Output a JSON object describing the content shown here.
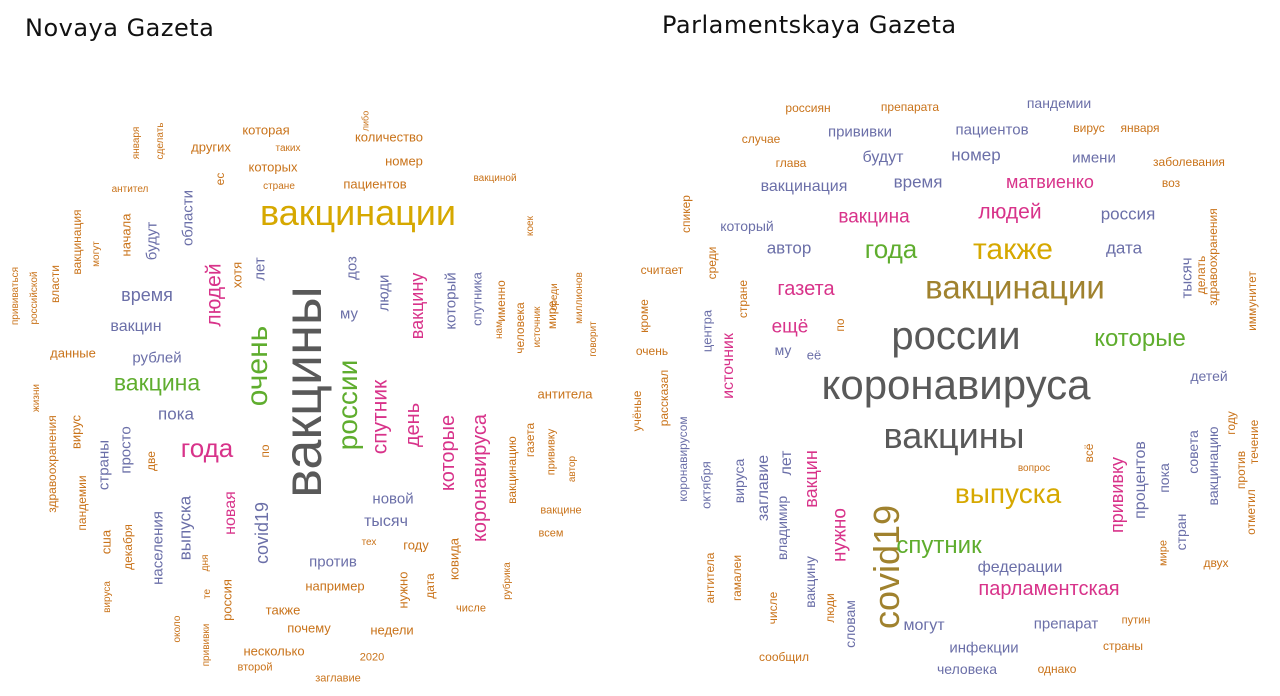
{
  "palette": {
    "gray": "#595959",
    "yellow": "#d6a800",
    "green": "#5fad2e",
    "pink": "#d8338a",
    "blue": "#6b6fa8",
    "orange": "#c9731a",
    "brown": "#a0822e"
  },
  "left": {
    "title": "Novaya Gazeta",
    "words": [
      {
        "t": "вакцины",
        "c": "gray",
        "s": 54,
        "v": 1
      },
      {
        "t": "вакцинации",
        "c": "yellow",
        "s": 36,
        "v": 0
      },
      {
        "t": "очень",
        "c": "green",
        "s": 30,
        "v": 1
      },
      {
        "t": "россии",
        "c": "green",
        "s": 28,
        "v": 1
      },
      {
        "t": "вакцина",
        "c": "green",
        "s": 23,
        "v": 0
      },
      {
        "t": "года",
        "c": "pink",
        "s": 26,
        "v": 0
      },
      {
        "t": "людей",
        "c": "pink",
        "s": 21,
        "v": 1
      },
      {
        "t": "спутник",
        "c": "pink",
        "s": 21,
        "v": 1
      },
      {
        "t": "день",
        "c": "pink",
        "s": 20,
        "v": 1
      },
      {
        "t": "которые",
        "c": "pink",
        "s": 20,
        "v": 1
      },
      {
        "t": "коронавируса",
        "c": "pink",
        "s": 20,
        "v": 1
      },
      {
        "t": "вакцину",
        "c": "pink",
        "s": 18,
        "v": 1
      },
      {
        "t": "новая",
        "c": "pink",
        "s": 16,
        "v": 1
      },
      {
        "t": "время",
        "c": "blue",
        "s": 18,
        "v": 0
      },
      {
        "t": "covid19",
        "c": "blue",
        "s": 18,
        "v": 1
      },
      {
        "t": "выпуска",
        "c": "blue",
        "s": 17,
        "v": 1
      },
      {
        "t": "пока",
        "c": "blue",
        "s": 17,
        "v": 0
      },
      {
        "t": "вакцин",
        "c": "blue",
        "s": 16,
        "v": 0
      },
      {
        "t": "рублей",
        "c": "blue",
        "s": 15,
        "v": 0
      },
      {
        "t": "будут",
        "c": "blue",
        "s": 15,
        "v": 1
      },
      {
        "t": "области",
        "c": "blue",
        "s": 15,
        "v": 1
      },
      {
        "t": "лет",
        "c": "blue",
        "s": 15,
        "v": 1
      },
      {
        "t": "доз",
        "c": "blue",
        "s": 15,
        "v": 1
      },
      {
        "t": "му",
        "c": "blue",
        "s": 15,
        "v": 0
      },
      {
        "t": "люди",
        "c": "blue",
        "s": 15,
        "v": 1
      },
      {
        "t": "который",
        "c": "blue",
        "s": 15,
        "v": 1
      },
      {
        "t": "тысяч",
        "c": "blue",
        "s": 16,
        "v": 0
      },
      {
        "t": "новой",
        "c": "blue",
        "s": 15,
        "v": 0
      },
      {
        "t": "против",
        "c": "blue",
        "s": 15,
        "v": 0
      },
      {
        "t": "просто",
        "c": "blue",
        "s": 15,
        "v": 1
      },
      {
        "t": "страны",
        "c": "blue",
        "s": 15,
        "v": 1
      },
      {
        "t": "населения",
        "c": "blue",
        "s": 15,
        "v": 1
      },
      {
        "t": "спутника",
        "c": "blue",
        "s": 13,
        "v": 1
      },
      {
        "t": "которая",
        "c": "orange",
        "s": 13,
        "v": 0
      },
      {
        "t": "количество",
        "c": "orange",
        "s": 13,
        "v": 0
      },
      {
        "t": "других",
        "c": "orange",
        "s": 13,
        "v": 0
      },
      {
        "t": "которых",
        "c": "orange",
        "s": 13,
        "v": 0
      },
      {
        "t": "номер",
        "c": "orange",
        "s": 13,
        "v": 0
      },
      {
        "t": "пациентов",
        "c": "orange",
        "s": 13,
        "v": 0
      },
      {
        "t": "начала",
        "c": "orange",
        "s": 13,
        "v": 1
      },
      {
        "t": "хотя",
        "c": "orange",
        "s": 13,
        "v": 1
      },
      {
        "t": "именно",
        "c": "orange",
        "s": 12,
        "v": 1
      },
      {
        "t": "человека",
        "c": "orange",
        "s": 12,
        "v": 1
      },
      {
        "t": "вакцинация",
        "c": "orange",
        "s": 12,
        "v": 1
      },
      {
        "t": "власти",
        "c": "orange",
        "s": 12,
        "v": 1
      },
      {
        "t": "данные",
        "c": "orange",
        "s": 13,
        "v": 0
      },
      {
        "t": "мире",
        "c": "orange",
        "s": 12,
        "v": 1
      },
      {
        "t": "антитела",
        "c": "orange",
        "s": 13,
        "v": 0
      },
      {
        "t": "вирус",
        "c": "orange",
        "s": 13,
        "v": 1
      },
      {
        "t": "здравоохранения",
        "c": "orange",
        "s": 12,
        "v": 1
      },
      {
        "t": "пандемии",
        "c": "orange",
        "s": 12,
        "v": 1
      },
      {
        "t": "сша",
        "c": "orange",
        "s": 13,
        "v": 1
      },
      {
        "t": "декабря",
        "c": "orange",
        "s": 12,
        "v": 1
      },
      {
        "t": "две",
        "c": "orange",
        "s": 12,
        "v": 1
      },
      {
        "t": "по",
        "c": "orange",
        "s": 12,
        "v": 1
      },
      {
        "t": "году",
        "c": "orange",
        "s": 13,
        "v": 0
      },
      {
        "t": "например",
        "c": "orange",
        "s": 13,
        "v": 0
      },
      {
        "t": "ковида",
        "c": "orange",
        "s": 13,
        "v": 1
      },
      {
        "t": "дата",
        "c": "orange",
        "s": 12,
        "v": 1
      },
      {
        "t": "нужно",
        "c": "orange",
        "s": 13,
        "v": 1
      },
      {
        "t": "также",
        "c": "orange",
        "s": 13,
        "v": 0
      },
      {
        "t": "почему",
        "c": "orange",
        "s": 13,
        "v": 0
      },
      {
        "t": "недели",
        "c": "orange",
        "s": 13,
        "v": 0
      },
      {
        "t": "несколько",
        "c": "orange",
        "s": 13,
        "v": 0
      },
      {
        "t": "россия",
        "c": "orange",
        "s": 13,
        "v": 1
      },
      {
        "t": "вакцинацию",
        "c": "orange",
        "s": 12,
        "v": 1
      },
      {
        "t": "газета",
        "c": "orange",
        "s": 12,
        "v": 1
      },
      {
        "t": "ес",
        "c": "orange",
        "s": 12,
        "v": 1
      },
      {
        "t": "прививку",
        "c": "orange",
        "s": 11,
        "v": 1
      },
      {
        "t": "таких",
        "c": "orange",
        "s": 10,
        "v": 0
      },
      {
        "t": "стране",
        "c": "orange",
        "s": 10,
        "v": 0
      },
      {
        "t": "вакциной",
        "c": "orange",
        "s": 10,
        "v": 0
      },
      {
        "t": "либо",
        "c": "orange",
        "s": 9,
        "v": 1
      },
      {
        "t": "января",
        "c": "orange",
        "s": 10,
        "v": 1
      },
      {
        "t": "сделать",
        "c": "orange",
        "s": 10,
        "v": 1
      },
      {
        "t": "антител",
        "c": "orange",
        "s": 10,
        "v": 0
      },
      {
        "t": "коек",
        "c": "orange",
        "s": 10,
        "v": 1
      },
      {
        "t": "могут",
        "c": "orange",
        "s": 10,
        "v": 1
      },
      {
        "t": "прививаться",
        "c": "orange",
        "s": 10,
        "v": 1
      },
      {
        "t": "российской",
        "c": "orange",
        "s": 10,
        "v": 1
      },
      {
        "t": "нам",
        "c": "orange",
        "s": 10,
        "v": 1
      },
      {
        "t": "источник",
        "c": "orange",
        "s": 10,
        "v": 1
      },
      {
        "t": "среди",
        "c": "orange",
        "s": 10,
        "v": 1
      },
      {
        "t": "миллионов",
        "c": "orange",
        "s": 10,
        "v": 1
      },
      {
        "t": "говорит",
        "c": "orange",
        "s": 10,
        "v": 1
      },
      {
        "t": "жизни",
        "c": "orange",
        "s": 10,
        "v": 1
      },
      {
        "t": "автор",
        "c": "orange",
        "s": 10,
        "v": 1
      },
      {
        "t": "вакцине",
        "c": "orange",
        "s": 11,
        "v": 0
      },
      {
        "t": "всем",
        "c": "orange",
        "s": 11,
        "v": 0
      },
      {
        "t": "тех",
        "c": "orange",
        "s": 10,
        "v": 0
      },
      {
        "t": "дня",
        "c": "orange",
        "s": 10,
        "v": 1
      },
      {
        "t": "те",
        "c": "orange",
        "s": 10,
        "v": 1
      },
      {
        "t": "вируса",
        "c": "orange",
        "s": 10,
        "v": 1
      },
      {
        "t": "около",
        "c": "orange",
        "s": 10,
        "v": 1
      },
      {
        "t": "прививки",
        "c": "orange",
        "s": 10,
        "v": 1
      },
      {
        "t": "второй",
        "c": "orange",
        "s": 11,
        "v": 0
      },
      {
        "t": "2020",
        "c": "orange",
        "s": 11,
        "v": 0
      },
      {
        "t": "заглавие",
        "c": "orange",
        "s": 11,
        "v": 0
      },
      {
        "t": "рубрика",
        "c": "orange",
        "s": 10,
        "v": 1
      },
      {
        "t": "числе",
        "c": "orange",
        "s": 11,
        "v": 0
      }
    ]
  },
  "right": {
    "title": "Parlamentskaya Gazeta",
    "words": [
      {
        "t": "коронавируса",
        "c": "gray",
        "s": 42,
        "v": 0
      },
      {
        "t": "россии",
        "c": "gray",
        "s": 40,
        "v": 0
      },
      {
        "t": "вакцины",
        "c": "gray",
        "s": 36,
        "v": 0
      },
      {
        "t": "вакцинации",
        "c": "brown",
        "s": 33,
        "v": 0
      },
      {
        "t": "covid19",
        "c": "brown",
        "s": 36,
        "v": 1
      },
      {
        "t": "также",
        "c": "yellow",
        "s": 30,
        "v": 0
      },
      {
        "t": "выпуска",
        "c": "yellow",
        "s": 28,
        "v": 0
      },
      {
        "t": "года",
        "c": "green",
        "s": 26,
        "v": 0
      },
      {
        "t": "которые",
        "c": "green",
        "s": 24,
        "v": 0
      },
      {
        "t": "спутник",
        "c": "green",
        "s": 24,
        "v": 0
      },
      {
        "t": "людей",
        "c": "pink",
        "s": 21,
        "v": 0
      },
      {
        "t": "вакцина",
        "c": "pink",
        "s": 19,
        "v": 0
      },
      {
        "t": "матвиенко",
        "c": "pink",
        "s": 18,
        "v": 0
      },
      {
        "t": "газета",
        "c": "pink",
        "s": 20,
        "v": 0
      },
      {
        "t": "ещё",
        "c": "pink",
        "s": 19,
        "v": 0
      },
      {
        "t": "парламентская",
        "c": "pink",
        "s": 20,
        "v": 0
      },
      {
        "t": "нужно",
        "c": "pink",
        "s": 19,
        "v": 1
      },
      {
        "t": "вакцин",
        "c": "pink",
        "s": 18,
        "v": 1
      },
      {
        "t": "прививку",
        "c": "pink",
        "s": 18,
        "v": 1
      },
      {
        "t": "источник",
        "c": "pink",
        "s": 16,
        "v": 1
      },
      {
        "t": "россия",
        "c": "blue",
        "s": 17,
        "v": 0
      },
      {
        "t": "время",
        "c": "blue",
        "s": 17,
        "v": 0
      },
      {
        "t": "номер",
        "c": "blue",
        "s": 17,
        "v": 0
      },
      {
        "t": "вакцинация",
        "c": "blue",
        "s": 16,
        "v": 0
      },
      {
        "t": "будут",
        "c": "blue",
        "s": 16,
        "v": 0
      },
      {
        "t": "пациентов",
        "c": "blue",
        "s": 15,
        "v": 0
      },
      {
        "t": "прививки",
        "c": "blue",
        "s": 15,
        "v": 0
      },
      {
        "t": "имени",
        "c": "blue",
        "s": 15,
        "v": 0
      },
      {
        "t": "пандемии",
        "c": "blue",
        "s": 14,
        "v": 0
      },
      {
        "t": "автор",
        "c": "blue",
        "s": 17,
        "v": 0
      },
      {
        "t": "дата",
        "c": "blue",
        "s": 17,
        "v": 0
      },
      {
        "t": "который",
        "c": "blue",
        "s": 14,
        "v": 0
      },
      {
        "t": "процентов",
        "c": "blue",
        "s": 16,
        "v": 1
      },
      {
        "t": "тысяч",
        "c": "blue",
        "s": 15,
        "v": 1
      },
      {
        "t": "федерации",
        "c": "blue",
        "s": 16,
        "v": 0
      },
      {
        "t": "могут",
        "c": "blue",
        "s": 16,
        "v": 0
      },
      {
        "t": "препарат",
        "c": "blue",
        "s": 15,
        "v": 0
      },
      {
        "t": "инфекции",
        "c": "blue",
        "s": 15,
        "v": 0
      },
      {
        "t": "человека",
        "c": "blue",
        "s": 14,
        "v": 0
      },
      {
        "t": "заглавие",
        "c": "blue",
        "s": 16,
        "v": 1
      },
      {
        "t": "лет",
        "c": "blue",
        "s": 16,
        "v": 1
      },
      {
        "t": "владимир",
        "c": "blue",
        "s": 14,
        "v": 1
      },
      {
        "t": "вакцину",
        "c": "blue",
        "s": 14,
        "v": 1
      },
      {
        "t": "словам",
        "c": "blue",
        "s": 14,
        "v": 1
      },
      {
        "t": "пока",
        "c": "blue",
        "s": 14,
        "v": 1
      },
      {
        "t": "совета",
        "c": "blue",
        "s": 14,
        "v": 1
      },
      {
        "t": "стран",
        "c": "blue",
        "s": 14,
        "v": 1
      },
      {
        "t": "вакцинацию",
        "c": "blue",
        "s": 14,
        "v": 1
      },
      {
        "t": "детей",
        "c": "blue",
        "s": 14,
        "v": 0
      },
      {
        "t": "центра",
        "c": "blue",
        "s": 13,
        "v": 1
      },
      {
        "t": "вируса",
        "c": "blue",
        "s": 14,
        "v": 1
      },
      {
        "t": "октября",
        "c": "blue",
        "s": 13,
        "v": 1
      },
      {
        "t": "коронавирусом",
        "c": "blue",
        "s": 12,
        "v": 1
      },
      {
        "t": "му",
        "c": "blue",
        "s": 14,
        "v": 0
      },
      {
        "t": "её",
        "c": "blue",
        "s": 13,
        "v": 0
      },
      {
        "t": "россиян",
        "c": "orange",
        "s": 12,
        "v": 0
      },
      {
        "t": "препарата",
        "c": "orange",
        "s": 12,
        "v": 0
      },
      {
        "t": "вирус",
        "c": "orange",
        "s": 12,
        "v": 0
      },
      {
        "t": "января",
        "c": "orange",
        "s": 12,
        "v": 0
      },
      {
        "t": "случае",
        "c": "orange",
        "s": 12,
        "v": 0
      },
      {
        "t": "глава",
        "c": "orange",
        "s": 12,
        "v": 0
      },
      {
        "t": "заболевания",
        "c": "orange",
        "s": 12,
        "v": 0
      },
      {
        "t": "воз",
        "c": "orange",
        "s": 12,
        "v": 0
      },
      {
        "t": "спикер",
        "c": "orange",
        "s": 12,
        "v": 1
      },
      {
        "t": "среди",
        "c": "orange",
        "s": 12,
        "v": 1
      },
      {
        "t": "считает",
        "c": "orange",
        "s": 12,
        "v": 0
      },
      {
        "t": "стране",
        "c": "orange",
        "s": 12,
        "v": 1
      },
      {
        "t": "кроме",
        "c": "orange",
        "s": 12,
        "v": 1
      },
      {
        "t": "очень",
        "c": "orange",
        "s": 12,
        "v": 0
      },
      {
        "t": "по",
        "c": "orange",
        "s": 12,
        "v": 1
      },
      {
        "t": "здравоохранения",
        "c": "orange",
        "s": 12,
        "v": 1
      },
      {
        "t": "делать",
        "c": "orange",
        "s": 12,
        "v": 1
      },
      {
        "t": "иммунитет",
        "c": "orange",
        "s": 12,
        "v": 1
      },
      {
        "t": "рассказал",
        "c": "orange",
        "s": 12,
        "v": 1
      },
      {
        "t": "учёные",
        "c": "orange",
        "s": 12,
        "v": 1
      },
      {
        "t": "году",
        "c": "orange",
        "s": 12,
        "v": 1
      },
      {
        "t": "течение",
        "c": "orange",
        "s": 12,
        "v": 1
      },
      {
        "t": "против",
        "c": "orange",
        "s": 12,
        "v": 1
      },
      {
        "t": "отметил",
        "c": "orange",
        "s": 12,
        "v": 1
      },
      {
        "t": "всё",
        "c": "orange",
        "s": 12,
        "v": 1
      },
      {
        "t": "вопрос",
        "c": "orange",
        "s": 10,
        "v": 0
      },
      {
        "t": "мире",
        "c": "orange",
        "s": 11,
        "v": 1
      },
      {
        "t": "двух",
        "c": "orange",
        "s": 12,
        "v": 0
      },
      {
        "t": "антитела",
        "c": "orange",
        "s": 12,
        "v": 1
      },
      {
        "t": "гамалеи",
        "c": "orange",
        "s": 12,
        "v": 1
      },
      {
        "t": "числе",
        "c": "orange",
        "s": 12,
        "v": 1
      },
      {
        "t": "люди",
        "c": "orange",
        "s": 12,
        "v": 1
      },
      {
        "t": "путин",
        "c": "orange",
        "s": 11,
        "v": 0
      },
      {
        "t": "страны",
        "c": "orange",
        "s": 12,
        "v": 0
      },
      {
        "t": "сообщил",
        "c": "orange",
        "s": 12,
        "v": 0
      },
      {
        "t": "однако",
        "c": "orange",
        "s": 12,
        "v": 0
      }
    ]
  }
}
